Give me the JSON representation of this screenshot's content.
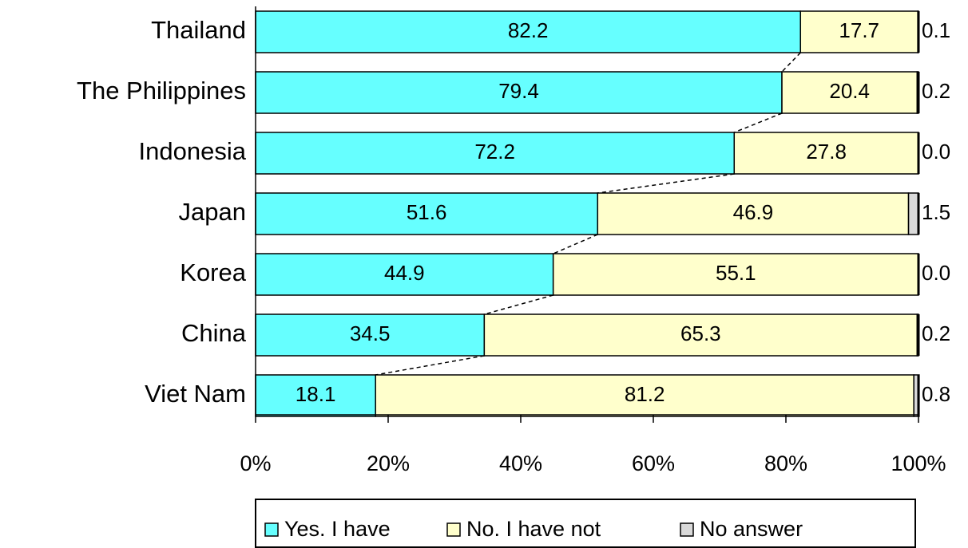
{
  "chart_data": {
    "type": "stacked-bar-horizontal",
    "categories": [
      "Thailand",
      "The Philippines",
      "Indonesia",
      "Japan",
      "Korea",
      "China",
      "Viet Nam"
    ],
    "series": [
      {
        "name": "Yes. I have",
        "color": "#66ffff",
        "values": [
          82.2,
          79.4,
          72.2,
          51.6,
          44.9,
          34.5,
          18.1
        ]
      },
      {
        "name": "No. I have not",
        "color": "#ffffcc",
        "values": [
          17.7,
          20.4,
          27.8,
          46.9,
          55.1,
          65.3,
          81.2
        ]
      },
      {
        "name": "No answer",
        "color": "#d9d9d9",
        "values": [
          0.1,
          0.2,
          0,
          1.5,
          0,
          0.2,
          0.8
        ],
        "value_labels": [
          "0.1",
          "0.2",
          "0.0",
          "1.5",
          "0.0",
          "0.2",
          "0.8"
        ]
      }
    ],
    "xlim": [
      0,
      100
    ],
    "xticks": [
      {
        "value": 0,
        "label": "0%"
      },
      {
        "value": 20,
        "label": "20%"
      },
      {
        "value": 40,
        "label": "40%"
      },
      {
        "value": 60,
        "label": "60%"
      },
      {
        "value": 80,
        "label": "80%"
      },
      {
        "value": 100,
        "label": "100%"
      }
    ],
    "legend": "bottom"
  }
}
